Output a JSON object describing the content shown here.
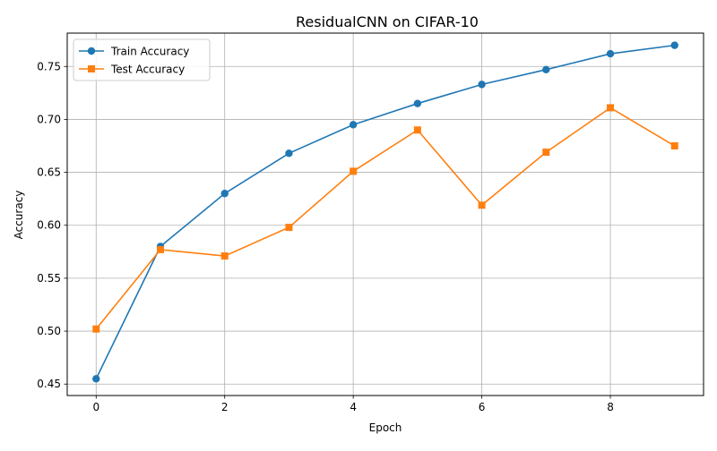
{
  "chart_data": {
    "type": "line",
    "title": "ResidualCNN on CIFAR-10",
    "xlabel": "Epoch",
    "ylabel": "Accuracy",
    "xlim": [
      -0.45,
      9.45
    ],
    "ylim": [
      0.4392,
      0.7815
    ],
    "xticks": [
      0,
      2,
      4,
      6,
      8
    ],
    "xtick_labels": [
      "0",
      "2",
      "4",
      "6",
      "8"
    ],
    "yticks": [
      0.45,
      0.5,
      0.55,
      0.6,
      0.65,
      0.7,
      0.75
    ],
    "ytick_labels": [
      "0.45",
      "0.50",
      "0.55",
      "0.60",
      "0.65",
      "0.70",
      "0.75"
    ],
    "grid": true,
    "legend": "upper-left",
    "x": [
      0,
      1,
      2,
      3,
      4,
      5,
      6,
      7,
      8,
      9
    ],
    "series": [
      {
        "name": "Train Accuracy",
        "marker": "circle",
        "color": "#1f77b4",
        "values": [
          0.455,
          0.58,
          0.63,
          0.668,
          0.695,
          0.715,
          0.733,
          0.747,
          0.762,
          0.77
        ]
      },
      {
        "name": "Test Accuracy",
        "marker": "square",
        "color": "#ff7f0e",
        "values": [
          0.502,
          0.577,
          0.571,
          0.598,
          0.651,
          0.69,
          0.619,
          0.669,
          0.711,
          0.675
        ]
      }
    ]
  }
}
